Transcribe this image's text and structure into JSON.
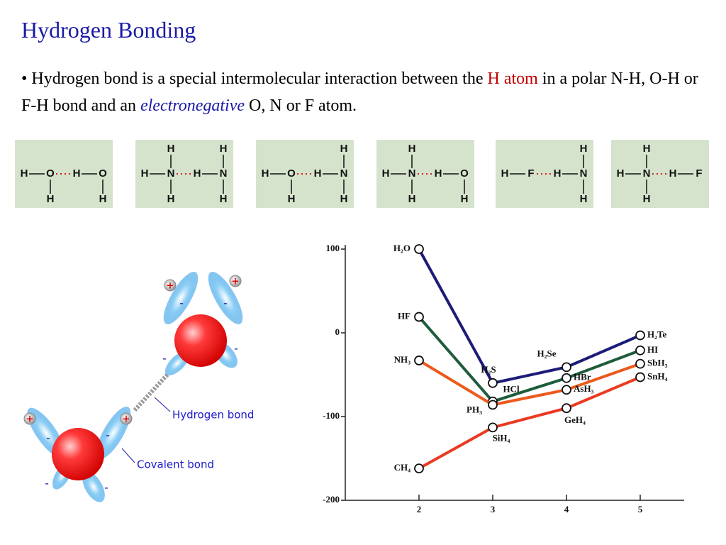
{
  "header": {
    "title": "Hydrogen Bonding"
  },
  "bullet": [
    "• Hydrogen bond is a special intermolecular interaction between the ",
    "H atom",
    " in a polar N-H, O-H or F-H bond and an ",
    "electronegative",
    " O, N or F atom."
  ],
  "structures": [
    {
      "atoms": [
        "H",
        "O",
        "H",
        "O"
      ],
      "bottom": [
        "H",
        "H"
      ]
    },
    {
      "atoms": [
        "H",
        "N",
        "H",
        "N"
      ],
      "top": [
        "H",
        "H"
      ],
      "bottom": [
        "H",
        "H"
      ]
    },
    {
      "atoms": [
        "H",
        "O",
        "H",
        "N"
      ],
      "top": [
        "H"
      ],
      "bottom": [
        "H",
        "H"
      ]
    },
    {
      "atoms": [
        "H",
        "N",
        "H",
        "O"
      ],
      "top": [
        "H"
      ],
      "bottom": [
        "H",
        "H"
      ]
    },
    {
      "atoms": [
        "H",
        "F",
        "H",
        "N"
      ],
      "top": [
        "H"
      ],
      "bottom": [
        "H"
      ]
    },
    {
      "atoms": [
        "H",
        "N",
        "H",
        "F"
      ],
      "top": [
        "H"
      ],
      "bottom": [
        "H"
      ]
    }
  ],
  "water_diagram": {
    "hydrogen_bond": "Hydrogen bond",
    "covalent_bond": "Covalent bond",
    "plus": "+",
    "minus": "-"
  },
  "chart_data": {
    "type": "line",
    "x": [
      2,
      3,
      4,
      5
    ],
    "xlim": [
      1,
      5.6
    ],
    "xticks": [
      2,
      3,
      4,
      5
    ],
    "ylim": [
      -200,
      100
    ],
    "yticks": [
      100,
      0,
      -100,
      -200
    ],
    "series": [
      {
        "color": "#1c1c78",
        "values": [
          100,
          -60,
          -41,
          -3
        ],
        "point_labels": [
          "H₂O",
          "H₂S",
          "H₂Se",
          "H₂Te"
        ]
      },
      {
        "color": "#1e5c3c",
        "values": [
          19,
          -82,
          -54,
          -21
        ],
        "point_labels": [
          "HF",
          "HCl",
          "HBr",
          "HI"
        ]
      },
      {
        "color": "#ec5a1e",
        "values": [
          -33,
          -86,
          -68,
          -37
        ],
        "point_labels": [
          "NH₃",
          "PH₃",
          "AsH₃",
          "SbH₃"
        ]
      },
      {
        "color": "#ea3a22",
        "values": [
          -162,
          -113,
          -90,
          -53
        ],
        "point_labels": [
          "CH₄",
          "SiH₄",
          "GeH₄",
          "SnH₄"
        ]
      }
    ]
  }
}
